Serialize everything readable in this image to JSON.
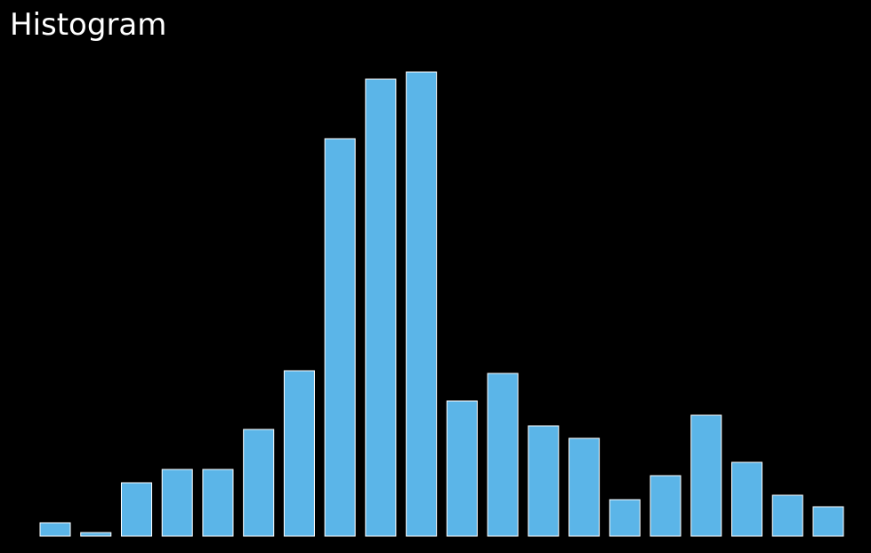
{
  "chart_data": {
    "type": "histogram",
    "title": "Histogram",
    "color": "#5bb5e8",
    "values": [
      15,
      4,
      60,
      75,
      75,
      120,
      186,
      447,
      514,
      522,
      152,
      183,
      124,
      110,
      41,
      68,
      136,
      83,
      46,
      33
    ]
  }
}
